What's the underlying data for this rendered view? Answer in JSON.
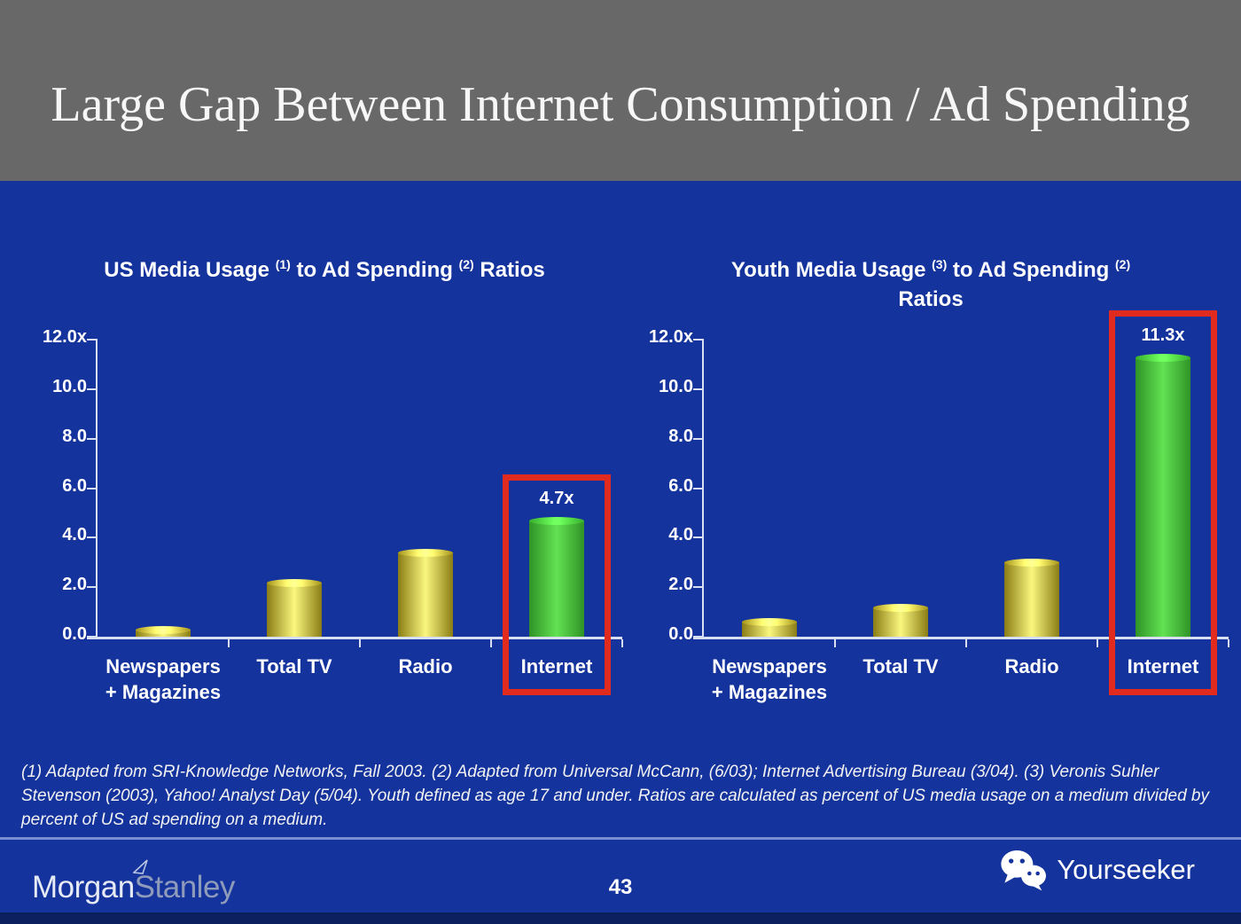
{
  "slide": {
    "title": "Large Gap Between Internet Consumption / Ad Spending"
  },
  "colors": {
    "header_gray": "#686868",
    "background_blue": "#15339D",
    "footer_strip_navy": "#0C1F5F",
    "divider_blue": "#7B8FD0",
    "accent_red": "#E02B1E",
    "axis_line": "#D8DFF2",
    "bar_yellow_edge": "#8A7C15",
    "bar_yellow_center": "#FAF77E",
    "bar_green_edge": "#2F9326",
    "bar_green_center": "#63E253",
    "text_white": "#FFFFFF"
  },
  "chart_data": [
    {
      "type": "bar",
      "title": "US Media Usage (1) to Ad Spending (2) Ratios",
      "title_parts": [
        {
          "text": "US Media Usage "
        },
        {
          "sup": "(1)"
        },
        {
          "text": " to Ad Spending "
        },
        {
          "sup": "(2)"
        },
        {
          "text": " Ratios"
        }
      ],
      "categories": [
        "Newspapers\n+ Magazines",
        "Total TV",
        "Radio",
        "Internet"
      ],
      "values": [
        0.3,
        2.2,
        3.4,
        4.7
      ],
      "bar_colors": [
        "yellow",
        "yellow",
        "yellow",
        "green"
      ],
      "ylim": [
        0,
        12
      ],
      "y_ticks": [
        {
          "label": "12.0x",
          "value": 12
        },
        {
          "label": "10.0",
          "value": 10
        },
        {
          "label": "8.0",
          "value": 8
        },
        {
          "label": "6.0",
          "value": 6
        },
        {
          "label": "4.0",
          "value": 4
        },
        {
          "label": "2.0",
          "value": 2
        },
        {
          "label": "0.0",
          "value": 0
        }
      ],
      "grid": false,
      "legend": null,
      "highlight": {
        "index": 3,
        "value_label": "4.7x",
        "box_top_value": 6.55
      }
    },
    {
      "type": "bar",
      "title": "Youth Media Usage (3) to Ad Spending (2) Ratios",
      "title_parts": [
        {
          "text": "Youth Media Usage "
        },
        {
          "sup": "(3)"
        },
        {
          "text": " to Ad Spending "
        },
        {
          "sup": "(2)"
        },
        {
          "br": true
        },
        {
          "text": "Ratios"
        }
      ],
      "categories": [
        "Newspapers\n+ Magazines",
        "Total TV",
        "Radio",
        "Internet"
      ],
      "values": [
        0.6,
        1.2,
        3.0,
        11.3
      ],
      "bar_colors": [
        "yellow",
        "yellow",
        "yellow",
        "green"
      ],
      "ylim": [
        0,
        12
      ],
      "y_ticks": [
        {
          "label": "12.0x",
          "value": 12
        },
        {
          "label": "10.0",
          "value": 10
        },
        {
          "label": "8.0",
          "value": 8
        },
        {
          "label": "6.0",
          "value": 6
        },
        {
          "label": "4.0",
          "value": 4
        },
        {
          "label": "2.0",
          "value": 2
        },
        {
          "label": "0.0",
          "value": 0
        }
      ],
      "grid": false,
      "legend": null,
      "highlight": {
        "index": 3,
        "value_label": "11.3x",
        "box_top_value": 13.2
      }
    }
  ],
  "footnote": "(1) Adapted from SRI-Knowledge Networks, Fall 2003.  (2) Adapted from Universal McCann, (6/03); Internet Advertising Bureau (3/04). (3) Veronis Suhler Stevenson (2003), Yahoo! Analyst Day (5/04).  Youth defined as age 17 and under.  Ratios are calculated as percent of US media usage on a medium divided by percent of US ad spending on a medium.",
  "footer": {
    "brand_left": {
      "word1": "Morgan",
      "word2": "Stanley"
    },
    "page_number": "43",
    "brand_right": "Yourseeker"
  }
}
